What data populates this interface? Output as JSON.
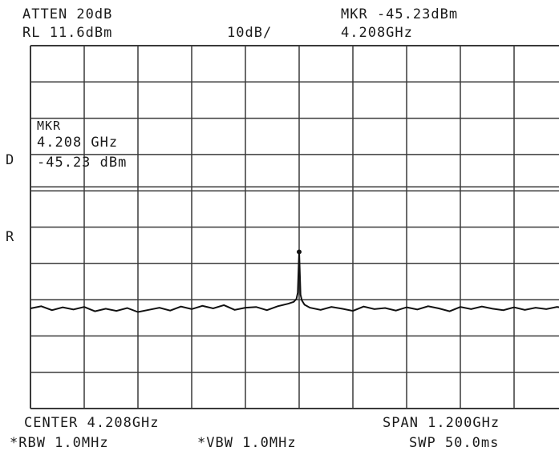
{
  "header": {
    "atten": "ATTEN 20dB",
    "ref_level": "RL 11.6dBm",
    "scale": "10dB/",
    "marker_readout": "MKR -45.23dBm",
    "marker_freq": "4.208GHz"
  },
  "marker_box": {
    "title": "MKR",
    "freq": "4.208 GHz",
    "level": "-45.23 dBm"
  },
  "side_labels": {
    "d": "D",
    "r": "R"
  },
  "footer": {
    "center": "CENTER 4.208GHz",
    "span": "SPAN 1.200GHz",
    "rbw": "*RBW 1.0MHz",
    "vbw": "*VBW 1.0MHz",
    "sweep": "SWP 50.0ms"
  },
  "colors": {
    "trace": "#111111",
    "grid": "#3a3a3a",
    "text": "#1a1a1a"
  },
  "chart_data": {
    "type": "line",
    "title": "",
    "xlabel": "",
    "ylabel": "",
    "x_unit": "GHz",
    "y_unit": "dBm",
    "xlim": [
      3.608,
      4.808
    ],
    "ylim": [
      -88.4,
      11.6
    ],
    "x_divisions": 10,
    "y_divisions": 10,
    "grid": true,
    "series": [
      {
        "x": [
          3.608,
          3.632,
          3.656,
          3.68,
          3.704,
          3.728,
          3.752,
          3.776,
          3.8,
          3.824,
          3.848,
          3.872,
          3.896,
          3.92,
          3.944,
          3.968,
          3.992,
          4.016,
          4.04,
          4.064,
          4.088,
          4.112,
          4.136,
          4.16,
          4.184,
          4.196,
          4.202,
          4.205,
          4.208,
          4.211,
          4.214,
          4.22,
          4.232,
          4.256,
          4.28,
          4.304,
          4.328,
          4.352,
          4.376,
          4.4,
          4.424,
          4.448,
          4.472,
          4.496,
          4.52,
          4.544,
          4.568,
          4.592,
          4.616,
          4.64,
          4.664,
          4.688,
          4.712,
          4.736,
          4.76,
          4.784,
          4.808
        ],
        "values": [
          -60.8,
          -60.2,
          -61.3,
          -60.5,
          -61.1,
          -60.4,
          -61.6,
          -60.9,
          -61.5,
          -60.7,
          -61.8,
          -61.2,
          -60.6,
          -61.4,
          -60.3,
          -61.0,
          -60.1,
          -60.8,
          -59.9,
          -61.2,
          -60.6,
          -60.4,
          -61.3,
          -60.2,
          -59.5,
          -59.0,
          -58.2,
          -56.5,
          -45.23,
          -57.0,
          -58.6,
          -59.8,
          -60.6,
          -61.2,
          -60.4,
          -60.9,
          -61.5,
          -60.3,
          -61.0,
          -60.7,
          -61.4,
          -60.5,
          -61.1,
          -60.2,
          -60.8,
          -61.6,
          -60.4,
          -61.0,
          -60.3,
          -60.9,
          -61.3,
          -60.5,
          -61.2,
          -60.6,
          -61.0,
          -60.4,
          -60.8
        ]
      }
    ],
    "marker": {
      "x": 4.208,
      "y": -45.23
    }
  }
}
